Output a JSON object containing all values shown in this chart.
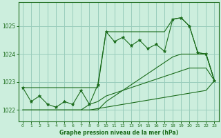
{
  "hours": [
    0,
    1,
    2,
    3,
    4,
    5,
    6,
    7,
    8,
    9,
    10,
    11,
    12,
    13,
    14,
    15,
    16,
    17,
    18,
    19,
    20,
    21,
    22,
    23
  ],
  "pressure": [
    1022.8,
    1022.3,
    1022.5,
    1022.2,
    1022.1,
    1022.3,
    1022.2,
    1022.7,
    1022.2,
    1022.9,
    1024.8,
    1024.45,
    1024.6,
    1024.3,
    1024.5,
    1024.2,
    1024.35,
    1024.1,
    1025.25,
    1025.3,
    1025.0,
    1024.05,
    1024.0,
    1023.05
  ],
  "line_upper": [
    1022.8,
    1022.8,
    1022.8,
    1022.8,
    1022.8,
    1022.8,
    1022.8,
    1022.8,
    1022.8,
    1022.8,
    1024.8,
    1024.8,
    1024.8,
    1024.8,
    1024.8,
    1024.8,
    1024.8,
    1024.8,
    1025.25,
    1025.3,
    1025.0,
    1024.05,
    1024.0,
    1023.05
  ],
  "line_mid_upper": [
    1022.0,
    1022.0,
    1022.0,
    1022.0,
    1022.0,
    1022.0,
    1022.0,
    1022.0,
    1022.0,
    1022.0,
    1022.3,
    1022.5,
    1022.7,
    1022.9,
    1023.1,
    1023.3,
    1023.5,
    1023.7,
    1023.9,
    1024.0,
    1024.0,
    1024.0,
    1024.0,
    1023.05
  ],
  "line_mid_lower": [
    1022.0,
    1022.0,
    1022.0,
    1022.0,
    1022.0,
    1022.0,
    1022.0,
    1022.0,
    1022.2,
    1022.3,
    1022.5,
    1022.6,
    1022.7,
    1022.8,
    1022.9,
    1023.0,
    1023.1,
    1023.2,
    1023.3,
    1023.4,
    1023.5,
    1023.5,
    1023.5,
    1023.05
  ],
  "line_lower": [
    1022.0,
    1022.0,
    1022.0,
    1022.0,
    1022.0,
    1022.0,
    1022.0,
    1022.0,
    1022.0,
    1022.05,
    1022.1,
    1022.15,
    1022.2,
    1022.25,
    1022.3,
    1022.35,
    1022.4,
    1022.45,
    1022.5,
    1022.55,
    1022.6,
    1022.65,
    1022.7,
    1023.05
  ],
  "line_color": "#1a6b1a",
  "bg_color": "#cceedd",
  "grid_color": "#99ccbb",
  "title": "Graphe pression niveau de la mer (hPa)",
  "ylim_min": 1021.6,
  "ylim_max": 1025.85,
  "yticks": [
    1022,
    1023,
    1024,
    1025
  ]
}
